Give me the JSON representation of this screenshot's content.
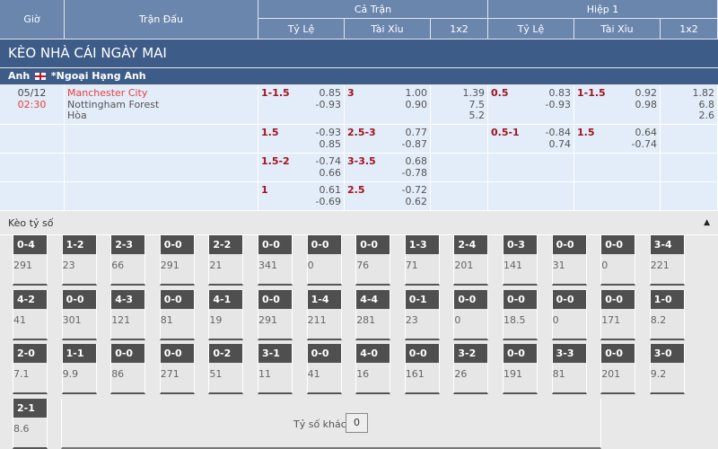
{
  "header": {
    "gio": "Giờ",
    "tran_dau": "Trận Đấu",
    "ca_tran": "Cả Trận",
    "hiep1": "Hiệp 1",
    "ty_le": "Tỷ Lệ",
    "tai_xiu": "Tài Xỉu",
    "x12": "1x2"
  },
  "title": "KÈO NHÀ CÁI NGÀY MAI",
  "league": {
    "country": "Anh",
    "name": "*Ngoại Hạng Anh",
    "flag": "england-flag-icon"
  },
  "match": {
    "date": "05/12",
    "time": "02:30",
    "home": "Manchester City",
    "away": "Nottingham Forest",
    "draw": "Hòa"
  },
  "rows": [
    {
      "ft_hc": "1-1.5",
      "ft_hc_odds": [
        "0.85",
        "-0.93"
      ],
      "ft_ou": "3",
      "ft_ou_odds": [
        "1.00",
        "0.90"
      ],
      "ft_1x2": [
        "1.39",
        "7.5",
        "5.2"
      ],
      "h1_hc": "0.5",
      "h1_hc_odds": [
        "0.83",
        "-0.93"
      ],
      "h1_ou": "1-1.5",
      "h1_ou_odds": [
        "0.92",
        "0.98"
      ],
      "h1_1x2": [
        "1.82",
        "6.8",
        "2.6"
      ]
    },
    {
      "ft_hc": "1.5",
      "ft_hc_odds": [
        "-0.93",
        "0.85"
      ],
      "ft_ou": "2.5-3",
      "ft_ou_odds": [
        "0.77",
        "-0.87"
      ],
      "h1_hc": "0.5-1",
      "h1_hc_odds": [
        "-0.84",
        "0.74"
      ],
      "h1_ou": "1.5",
      "h1_ou_odds": [
        "0.64",
        "-0.74"
      ]
    },
    {
      "ft_hc": "1.5-2",
      "ft_hc_odds": [
        "-0.74",
        "0.66"
      ],
      "ft_ou": "3-3.5",
      "ft_ou_odds": [
        "0.68",
        "-0.78"
      ]
    },
    {
      "ft_hc": "1",
      "ft_hc_odds": [
        "0.61",
        "-0.69"
      ],
      "ft_ou": "2.5",
      "ft_ou_odds": [
        "-0.72",
        "0.62"
      ]
    }
  ],
  "correct_score": {
    "title": "Kèo tỷ số",
    "collapse_icon": "caret-up-icon",
    "scores": [
      [
        "0-4",
        "291"
      ],
      [
        "1-2",
        "23"
      ],
      [
        "2-3",
        "66"
      ],
      [
        "0-0",
        "291"
      ],
      [
        "2-2",
        "21"
      ],
      [
        "0-0",
        "341"
      ],
      [
        "0-0",
        "0"
      ],
      [
        "0-0",
        "76"
      ],
      [
        "1-3",
        "71"
      ],
      [
        "2-4",
        "201"
      ],
      [
        "0-3",
        "141"
      ],
      [
        "0-0",
        "31"
      ],
      [
        "0-0",
        "0"
      ],
      [
        "3-4",
        "221"
      ],
      [
        "4-2",
        "41"
      ],
      [
        "0-0",
        "301"
      ],
      [
        "4-3",
        "121"
      ],
      [
        "0-0",
        "81"
      ],
      [
        "4-1",
        "19"
      ],
      [
        "0-0",
        "291"
      ],
      [
        "1-4",
        "211"
      ],
      [
        "4-4",
        "281"
      ],
      [
        "0-1",
        "23"
      ],
      [
        "0-0",
        "0"
      ],
      [
        "0-0",
        "18.5"
      ],
      [
        "0-0",
        "0"
      ],
      [
        "0-0",
        "171"
      ],
      [
        "1-0",
        "8.2"
      ],
      [
        "2-0",
        "7.1"
      ],
      [
        "1-1",
        "9.9"
      ],
      [
        "0-0",
        "86"
      ],
      [
        "0-0",
        "271"
      ],
      [
        "0-2",
        "51"
      ],
      [
        "3-1",
        "11"
      ],
      [
        "0-0",
        "41"
      ],
      [
        "4-0",
        "16"
      ],
      [
        "0-0",
        "161"
      ],
      [
        "3-2",
        "26"
      ],
      [
        "0-0",
        "191"
      ],
      [
        "3-3",
        "81"
      ],
      [
        "0-0",
        "201"
      ],
      [
        "3-0",
        "9.2"
      ],
      [
        "2-1",
        "8.6"
      ]
    ],
    "other_label": "Tỷ số khác",
    "other_value": "0"
  }
}
